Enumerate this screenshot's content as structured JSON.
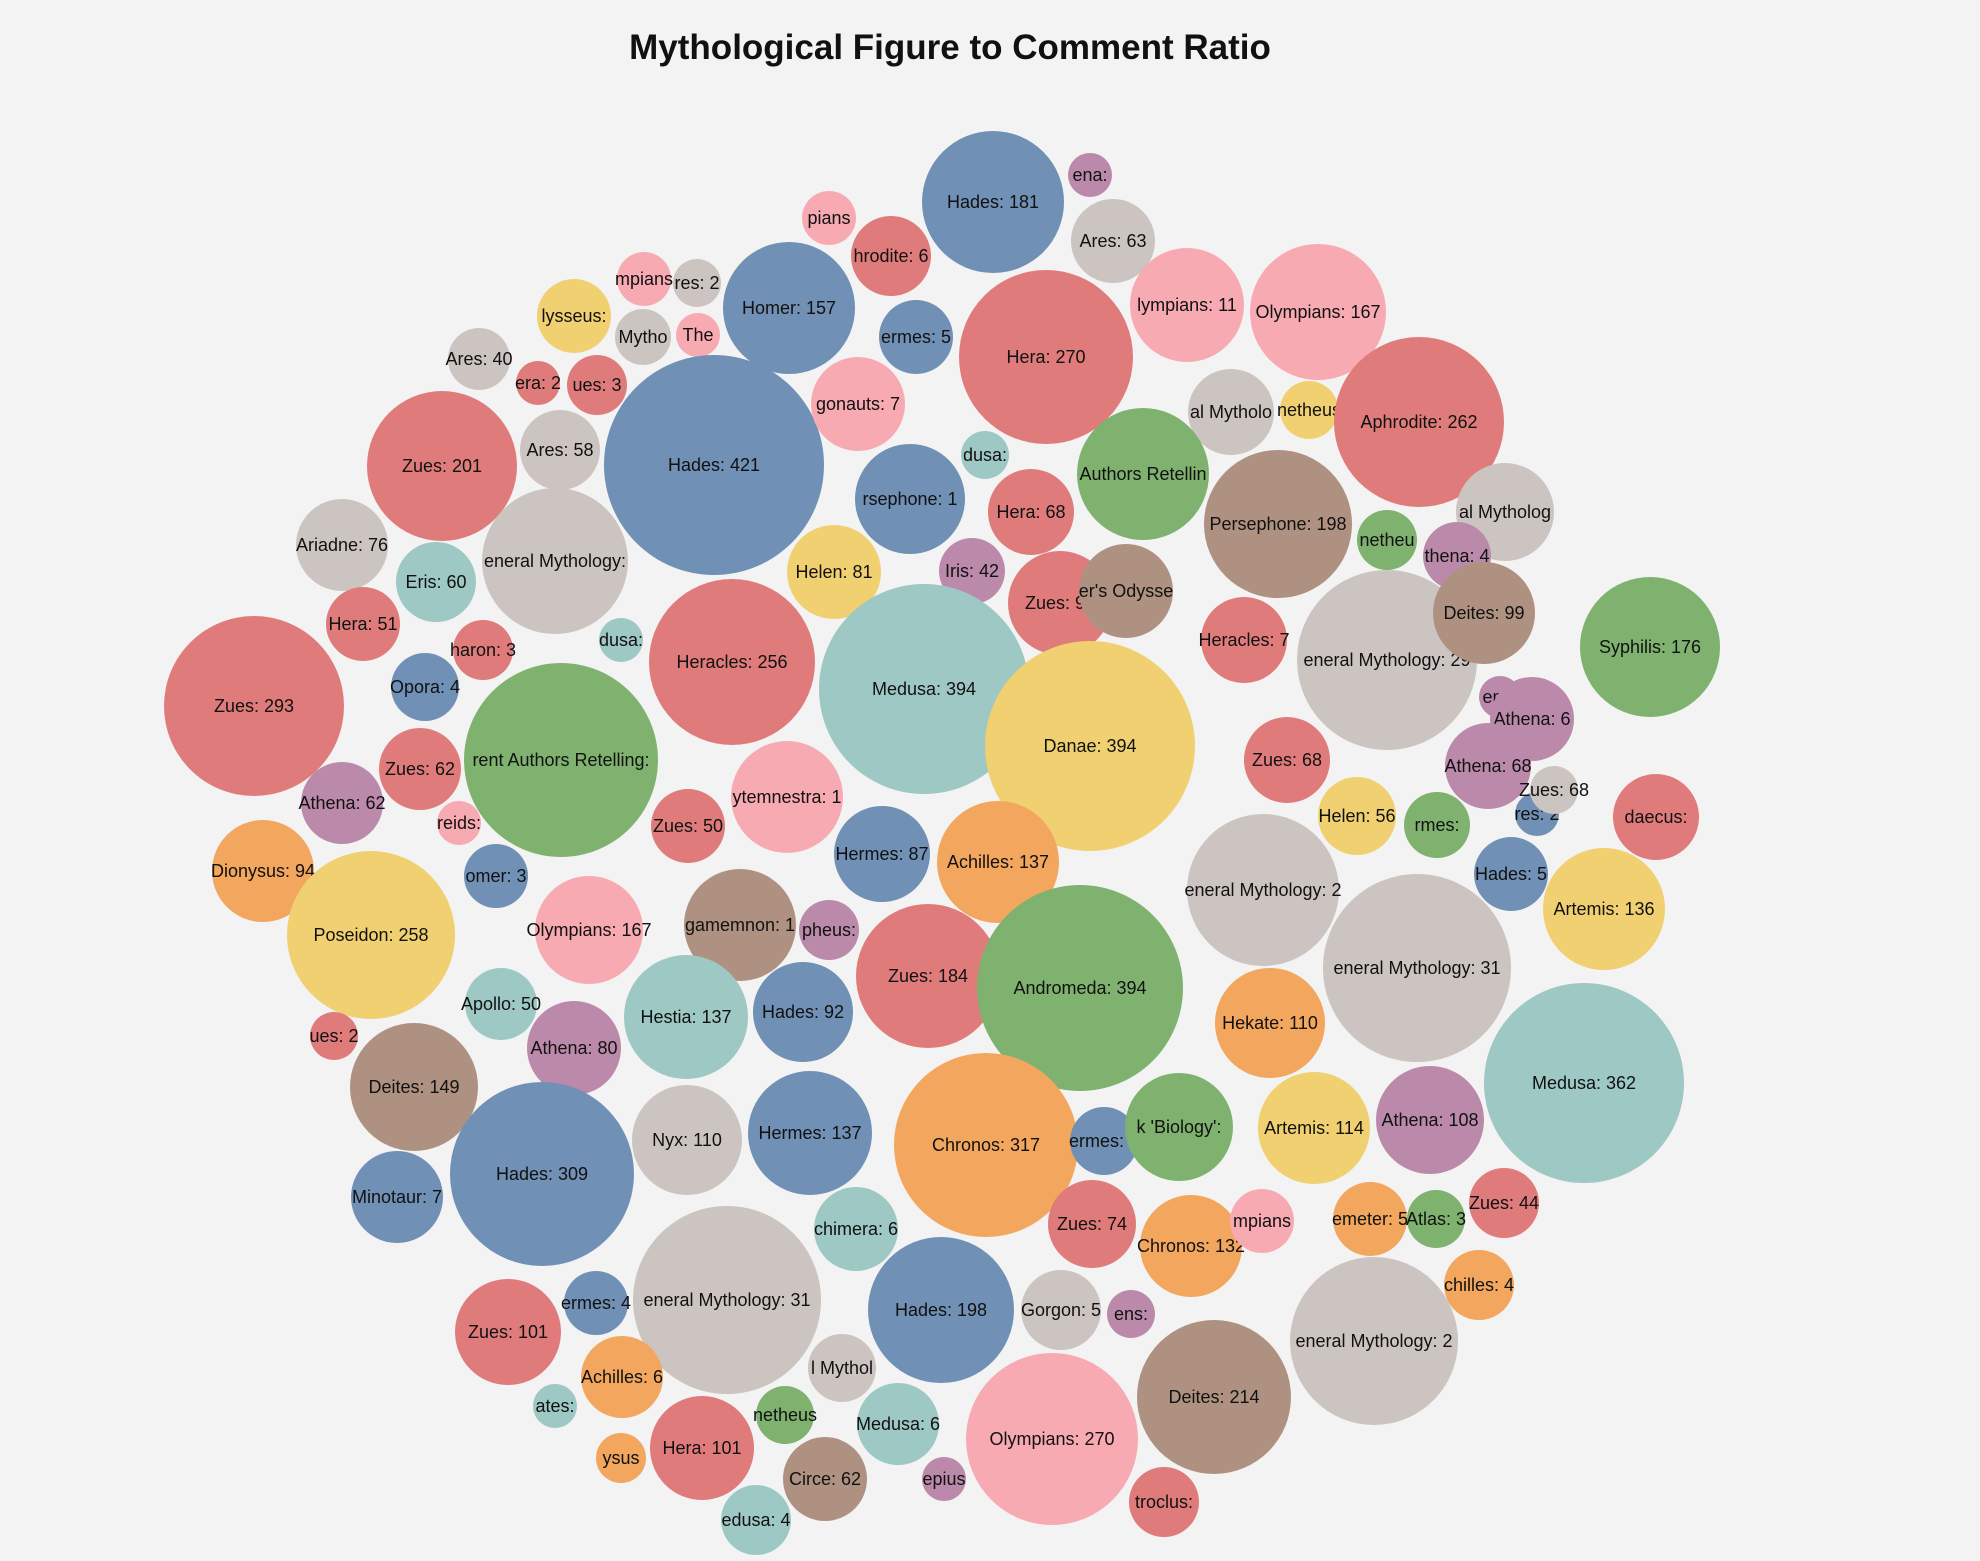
{
  "chart_data": {
    "type": "bubble",
    "title": "Mythological Figure to Comment Ratio",
    "labels": [
      "Hades: 181",
      "ena:",
      "Ares: 63",
      "pians",
      "hrodite: 6",
      "mpians",
      "res: 2",
      "Homer: 157",
      "lysseus:",
      "Mytho",
      "The",
      "ermes: 5",
      "Hera: 270",
      "lympians: 11",
      "Olympians: 167",
      "Ares: 40",
      "era: 2",
      "ues: 3",
      "Hades: 421",
      "gonauts: 7",
      "al Mytholo",
      "netheus",
      "Aphrodite: 262",
      "Zues: 201",
      "Ares: 58",
      "dusa:",
      "rsephone: 1",
      "Authors Retellin",
      "Hera: 68",
      "Persephone: 198",
      "al Mytholog",
      "Ariadne: 76",
      "eneral Mythology:",
      "Helen: 81",
      "Iris: 42",
      "netheu",
      "thena: 4",
      "Eris: 60",
      "Hera: 51",
      "haron: 3",
      "dusa:",
      "Heracles: 256",
      "Medusa: 394",
      "Zues: 99",
      "er's Odysse",
      "Heracles: 7",
      "eneral Mythology: 29",
      "Deites: 99",
      "Syphilis: 176",
      "Zues: 293",
      "Opora: 4",
      "rent Authors Retelling:",
      "Danae: 394",
      "ena:",
      "Athena: 6",
      "Athena: 68",
      "Zues: 62",
      "Athena: 62",
      "reids:",
      "Zues: 50",
      "ytemnestra: 1",
      "Zues: 68",
      "Helen: 56",
      "rmes:",
      "res: 2",
      "Zues: 68",
      "daecus:",
      "Dionysus: 94",
      "omer: 3",
      "Hermes: 87",
      "Achilles: 137",
      "eneral Mythology: 2",
      "Hades: 5",
      "Poseidon: 258",
      "Olympians: 167",
      "gamemnon: 1",
      "pheus:",
      "Artemis: 136",
      "eneral Mythology: 31",
      "Apollo: 50",
      "Zues: 184",
      "Andromeda: 394",
      "ues: 2",
      "Athena: 80",
      "Hestia: 137",
      "Hades: 92",
      "Hekate: 110",
      "Medusa: 362",
      "Deites: 149",
      "Nyx: 110",
      "Hermes: 137",
      "Chronos: 317",
      "ermes: 4",
      "k 'Biology':",
      "Artemis: 114",
      "Athena: 108",
      "Minotaur: 7",
      "Hades: 309",
      "chimera: 6",
      "Zues: 74",
      "Chronos: 132",
      "mpians",
      "emeter: 5",
      "Atlas: 3",
      "Zues: 44",
      "eneral Mythology: 31",
      "Hades: 198",
      "Gorgon: 5",
      "ens:",
      "eneral Mythology: 2",
      "chilles: 4",
      "Zues: 101",
      "ermes: 4",
      "Achilles: 6",
      "l Mythol",
      "ates:",
      "Hera: 101",
      "netheus",
      "Medusa: 6",
      "Olympians: 270",
      "Deites: 214",
      "ysus",
      "Circe: 62",
      "epius",
      "edusa: 4",
      "troclus:"
    ]
  }
}
